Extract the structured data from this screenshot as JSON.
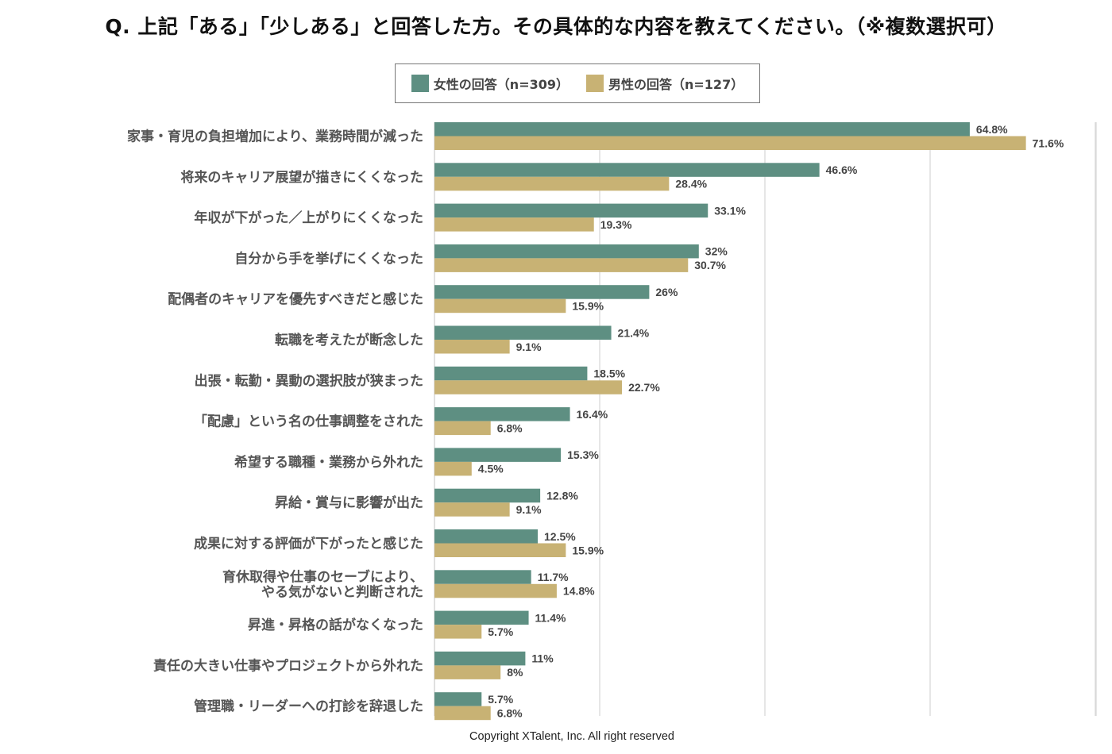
{
  "chart_data": {
    "type": "bar",
    "orientation": "horizontal",
    "title": "Q. 上記「ある」「少しある」と回答した方。その具体的な内容を教えてください。（※複数選択可）",
    "categories": [
      [
        "家事・育児の負担増加により、業務時間が減った"
      ],
      [
        "将来のキャリア展望が描きにくくなった"
      ],
      [
        "年収が下がった／上がりにくくなった"
      ],
      [
        "自分から手を挙げにくくなった"
      ],
      [
        "配偶者のキャリアを優先すべきだと感じた"
      ],
      [
        "転職を考えたが断念した"
      ],
      [
        "出張・転勤・異動の選択肢が狭まった"
      ],
      [
        "「配慮」という名の仕事調整をされた"
      ],
      [
        "希望する職種・業務から外れた"
      ],
      [
        "昇給・賞与に影響が出た"
      ],
      [
        "成果に対する評価が下がったと感じた"
      ],
      [
        "育休取得や仕事のセーブにより、",
        "やる気がないと判断された"
      ],
      [
        "昇進・昇格の話がなくなった"
      ],
      [
        "責任の大きい仕事やプロジェクトから外れた"
      ],
      [
        "管理職・リーダーへの打診を辞退した"
      ]
    ],
    "series": [
      {
        "name": "女性の回答（n=309）",
        "color": "#5e8f82",
        "values": [
          64.8,
          46.6,
          33.1,
          32,
          26,
          21.4,
          18.5,
          16.4,
          15.3,
          12.8,
          12.5,
          11.7,
          11.4,
          11,
          5.7
        ],
        "labels": [
          "64.8%",
          "46.6%",
          "33.1%",
          "32%",
          "26%",
          "21.4%",
          "18.5%",
          "16.4%",
          "15.3%",
          "12.8%",
          "12.5%",
          "11.7%",
          "11.4%",
          "11%",
          "5.7%"
        ]
      },
      {
        "name": "男性の回答（n=127）",
        "color": "#c8b274",
        "values": [
          71.6,
          28.4,
          19.3,
          30.7,
          15.9,
          9.1,
          22.7,
          6.8,
          4.5,
          9.1,
          15.9,
          14.8,
          5.7,
          8,
          6.8
        ],
        "labels": [
          "71.6%",
          "28.4%",
          "19.3%",
          "30.7%",
          "15.9%",
          "9.1%",
          "22.7%",
          "6.8%",
          "4.5%",
          "9.1%",
          "15.9%",
          "14.8%",
          "5.7%",
          "8%",
          "6.8%"
        ]
      }
    ],
    "xlim": [
      0,
      80
    ],
    "grid": true,
    "legend_position": "top-center"
  },
  "footer": "Copyright XTalent, Inc. All right reserved"
}
